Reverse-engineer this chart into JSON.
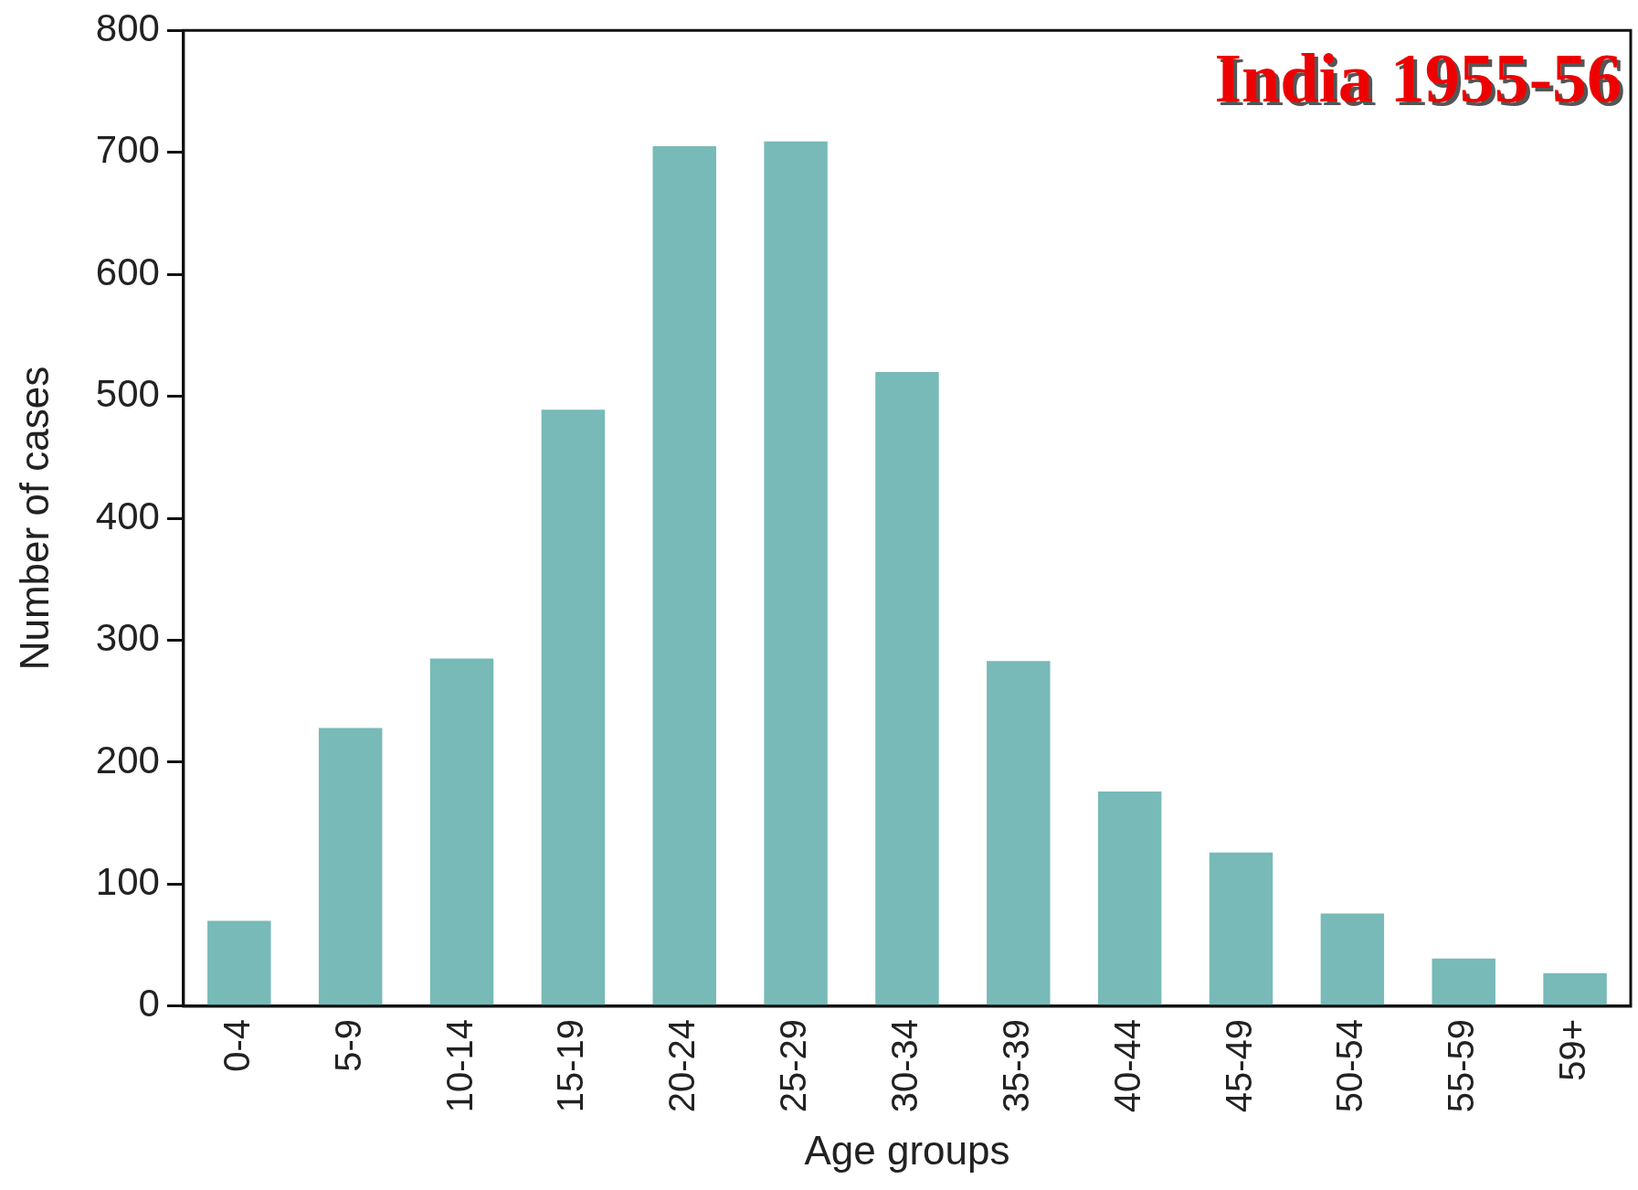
{
  "chart_data": {
    "type": "bar",
    "xlabel": "Age groups",
    "ylabel": "Number of cases",
    "annotations": [
      "India 1955-56"
    ],
    "categories": [
      "0-4",
      "5-9",
      "10-14",
      "15-19",
      "20-24",
      "25-29",
      "30-34",
      "35-39",
      "40-44",
      "45-49",
      "50-54",
      "55-59",
      "59+"
    ],
    "values": [
      70,
      228,
      285,
      489,
      705,
      709,
      520,
      283,
      176,
      126,
      76,
      39,
      27
    ],
    "color": "#77bab7",
    "ylim": [
      0,
      800
    ],
    "yticks": [
      0,
      100,
      200,
      300,
      400,
      500,
      600,
      700,
      800
    ],
    "grid": false,
    "legend": false
  }
}
